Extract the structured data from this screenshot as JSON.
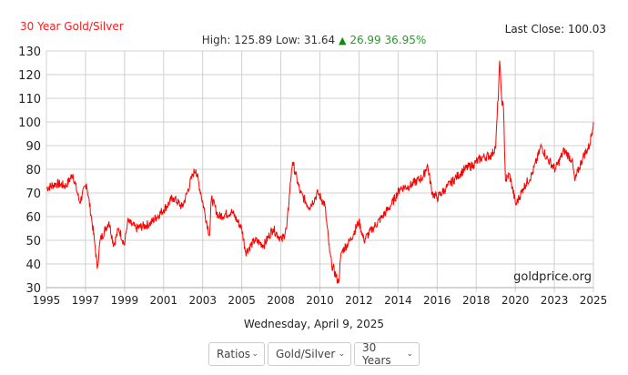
{
  "header": {
    "title": "30 Year Gold/Silver",
    "last_close": "Last Close: 100.03",
    "high_low": "High: 125.89 Low: 31.64",
    "change_icon": "triangle-up-icon",
    "change": "26.99 36.95%"
  },
  "chart_data": {
    "type": "line",
    "title": "30 Year Gold/Silver",
    "xlabel": "",
    "ylabel": "",
    "ylim": [
      30,
      130
    ],
    "yticks": [
      "130",
      "120",
      "110",
      "100",
      "90",
      "80",
      "70",
      "60",
      "50",
      "40",
      "30"
    ],
    "xticks": [
      "1995",
      "1997",
      "1999",
      "2001",
      "2003",
      "2005",
      "2008",
      "2010",
      "2012",
      "2014",
      "2016",
      "2018",
      "2020",
      "2023",
      "2025"
    ],
    "grid": true,
    "line_color": "#ff0000",
    "watermark": "goldprice.org",
    "points": [
      [
        1995,
        72
      ],
      [
        1995.5,
        74
      ],
      [
        1996,
        73
      ],
      [
        1996.35,
        78
      ],
      [
        1996.7,
        66
      ],
      [
        1997.05,
        74
      ],
      [
        1997.3,
        60
      ],
      [
        1997.5,
        47
      ],
      [
        1997.6,
        38
      ],
      [
        1997.75,
        50
      ],
      [
        1998.2,
        58
      ],
      [
        1998.45,
        48
      ],
      [
        1998.7,
        55
      ],
      [
        1999.0,
        48
      ],
      [
        1999.15,
        58
      ],
      [
        1999.6,
        55
      ],
      [
        2000.3,
        57
      ],
      [
        2001.0,
        63
      ],
      [
        2001.5,
        68
      ],
      [
        2001.95,
        64
      ],
      [
        2002.2,
        70
      ],
      [
        2002.5,
        78
      ],
      [
        2002.65,
        80
      ],
      [
        2002.9,
        70
      ],
      [
        2003.1,
        62
      ],
      [
        2003.35,
        52
      ],
      [
        2003.45,
        68
      ],
      [
        2003.8,
        60
      ],
      [
        2004.5,
        62
      ],
      [
        2005.0,
        55
      ],
      [
        2005.3,
        45
      ],
      [
        2006.0,
        50
      ],
      [
        2006.7,
        48
      ],
      [
        2007.4,
        55
      ],
      [
        2008.05,
        50
      ],
      [
        2008.3,
        55
      ],
      [
        2008.55,
        80
      ],
      [
        2008.6,
        83
      ],
      [
        2009.0,
        70
      ],
      [
        2009.45,
        64
      ],
      [
        2009.9,
        70
      ],
      [
        2010.25,
        65
      ],
      [
        2010.5,
        45
      ],
      [
        2010.6,
        40
      ],
      [
        2010.95,
        32
      ],
      [
        2011.1,
        45
      ],
      [
        2011.55,
        50
      ],
      [
        2012.0,
        58
      ],
      [
        2012.25,
        50
      ],
      [
        2012.7,
        55
      ],
      [
        2013.2,
        60
      ],
      [
        2013.65,
        65
      ],
      [
        2014.1,
        72
      ],
      [
        2014.6,
        73
      ],
      [
        2015.3,
        77
      ],
      [
        2015.5,
        82
      ],
      [
        2015.75,
        70
      ],
      [
        2016.0,
        68
      ],
      [
        2016.45,
        72
      ],
      [
        2016.9,
        76
      ],
      [
        2017.4,
        80
      ],
      [
        2017.85,
        82
      ],
      [
        2018.3,
        85
      ],
      [
        2018.8,
        86
      ],
      [
        2019.0,
        90
      ],
      [
        2019.15,
        115
      ],
      [
        2019.2,
        125.89
      ],
      [
        2019.3,
        110
      ],
      [
        2019.4,
        105
      ],
      [
        2019.5,
        75
      ],
      [
        2019.7,
        78
      ],
      [
        2020.05,
        65
      ],
      [
        2020.6,
        72
      ],
      [
        2021.3,
        78
      ],
      [
        2022.0,
        90
      ],
      [
        2022.4,
        85
      ],
      [
        2023.05,
        80
      ],
      [
        2023.5,
        88
      ],
      [
        2023.9,
        84
      ],
      [
        2024.05,
        75
      ],
      [
        2024.45,
        85
      ],
      [
        2024.8,
        90
      ],
      [
        2025.0,
        100.03
      ]
    ]
  },
  "footer": {
    "date": "Wednesday, April 9, 2025",
    "selects": [
      {
        "value": "Ratios"
      },
      {
        "value": "Gold/Silver"
      },
      {
        "value": "30 Years"
      }
    ]
  }
}
